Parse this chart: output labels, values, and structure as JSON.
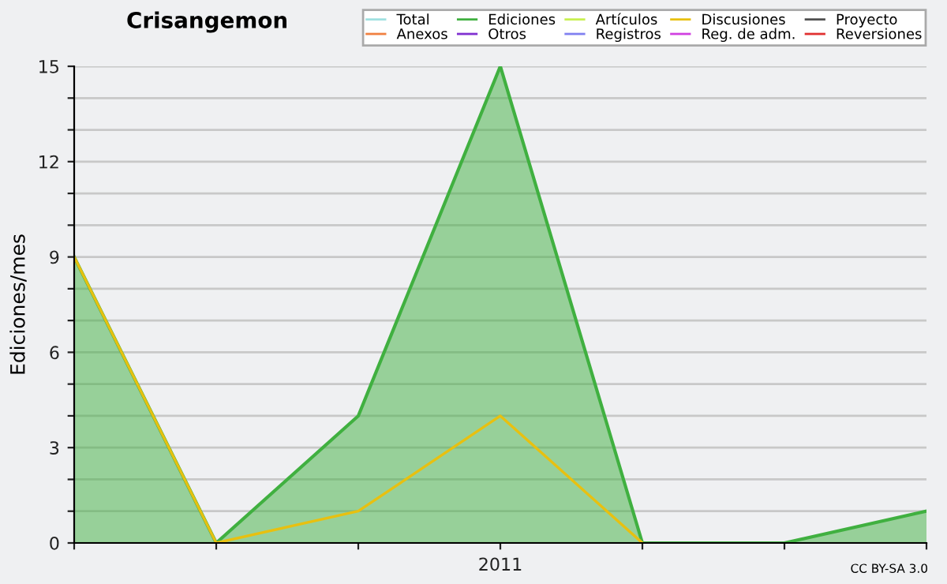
{
  "chart_data": {
    "type": "line",
    "title": "Crisangemon",
    "ylabel": "Ediciones/mes",
    "categories": [
      null,
      null,
      null,
      "2011",
      null,
      null,
      null
    ],
    "series": [
      {
        "name": "Total",
        "color": "#a0e0e0",
        "values": [
          null,
          null,
          null,
          null,
          null,
          null,
          null
        ]
      },
      {
        "name": "Anexos",
        "color": "#f08040",
        "values": [
          null,
          null,
          null,
          null,
          null,
          null,
          null
        ]
      },
      {
        "name": "Ediciones",
        "color": "#40b040",
        "type": "area",
        "values": [
          9,
          0,
          4,
          15,
          0,
          0,
          1
        ]
      },
      {
        "name": "Otros",
        "color": "#8030d0",
        "values": [
          null,
          null,
          null,
          null,
          null,
          null,
          null
        ]
      },
      {
        "name": "Artículos",
        "color": "#c8f050",
        "values": [
          null,
          null,
          null,
          null,
          null,
          null,
          null
        ]
      },
      {
        "name": "Registros",
        "color": "#8080f0",
        "values": [
          null,
          null,
          null,
          null,
          null,
          null,
          null
        ]
      },
      {
        "name": "Discusiones",
        "color": "#e8c010",
        "values": [
          9,
          0,
          1,
          4,
          0,
          null,
          null
        ]
      },
      {
        "name": "Reg. de adm.",
        "color": "#d040e0",
        "values": [
          null,
          null,
          null,
          null,
          null,
          null,
          null
        ]
      },
      {
        "name": "Proyecto",
        "color": "#505050",
        "values": [
          null,
          null,
          null,
          null,
          null,
          null,
          null
        ]
      },
      {
        "name": "Reversiones",
        "color": "#e03030",
        "values": [
          null,
          null,
          null,
          null,
          null,
          null,
          null
        ]
      }
    ],
    "ylim": [
      0,
      15
    ],
    "yticks": [
      0,
      {
        "value": 1,
        "label": null
      },
      {
        "value": 2,
        "label": null
      },
      3,
      {
        "value": 4,
        "label": null
      },
      {
        "value": 5,
        "label": null
      },
      6,
      {
        "value": 7,
        "label": null
      },
      {
        "value": 8,
        "label": null
      },
      9,
      {
        "value": 10,
        "label": null
      },
      {
        "value": 11,
        "label": null
      },
      12,
      {
        "value": 13,
        "label": null
      },
      {
        "value": 14,
        "label": null
      },
      15
    ],
    "grid": "y",
    "legend": "top right",
    "annotations": [
      "CC BY-SA 3.0"
    ]
  }
}
